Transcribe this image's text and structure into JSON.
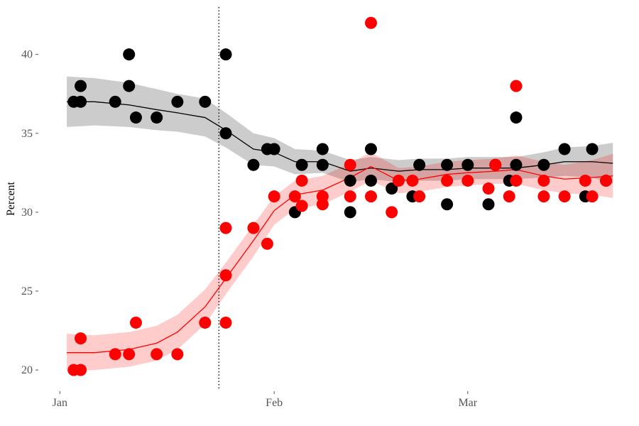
{
  "chart_data": {
    "type": "scatter",
    "y_label": "Percent",
    "xlim": [
      -2.5,
      81
    ],
    "ylim": [
      18.7,
      43
    ],
    "xticks": [
      {
        "value": 0,
        "label": "Jan"
      },
      {
        "value": 31,
        "label": "Feb"
      },
      {
        "value": 59,
        "label": "Mar"
      }
    ],
    "yticks": [
      20,
      25,
      30,
      35,
      40
    ],
    "grid": false,
    "vline_x": 23,
    "smooth_x": [
      1,
      5,
      10,
      14,
      17,
      21,
      24,
      28,
      31,
      34,
      38,
      42,
      45,
      49,
      52,
      56,
      59,
      63,
      66,
      70,
      73,
      77,
      80
    ],
    "series": [
      {
        "color": "#000000",
        "x": [
          2,
          3,
          3,
          8,
          10,
          10,
          11,
          14,
          17,
          21,
          24,
          24,
          28,
          30,
          31,
          34,
          35,
          38,
          38,
          42,
          42,
          45,
          45,
          48,
          51,
          52,
          56,
          56,
          59,
          62,
          63,
          65,
          66,
          66,
          70,
          73,
          76,
          77,
          79
        ],
        "values": [
          37,
          38,
          37,
          37,
          40,
          38,
          36,
          36,
          37,
          37,
          40,
          35,
          33,
          34,
          34,
          30,
          33,
          34,
          33,
          32,
          30,
          34,
          32,
          31.5,
          31,
          33,
          30.5,
          33,
          33,
          30.5,
          33,
          32,
          36,
          33,
          33,
          34,
          31,
          34,
          32
        ],
        "smooth_values": [
          37.0,
          37.0,
          36.8,
          36.5,
          36.3,
          36.0,
          35.2,
          34.0,
          33.8,
          33.2,
          33.2,
          32.6,
          32.8,
          32.6,
          32.7,
          32.7,
          32.8,
          32.8,
          32.8,
          33.0,
          33.2,
          33.2,
          33.1
        ],
        "smooth_lower": [
          35.4,
          35.5,
          35.4,
          35.2,
          35.1,
          34.8,
          34.1,
          33.0,
          32.9,
          32.4,
          32.5,
          31.9,
          32.1,
          31.9,
          32.0,
          32.0,
          32.1,
          32.1,
          32.1,
          32.2,
          32.3,
          32.2,
          31.8
        ],
        "smooth_upper": [
          38.6,
          38.5,
          38.2,
          37.8,
          37.5,
          37.2,
          36.3,
          35.0,
          34.7,
          34.0,
          33.9,
          33.3,
          33.5,
          33.3,
          33.4,
          33.4,
          33.5,
          33.5,
          33.5,
          33.8,
          34.1,
          34.2,
          34.4
        ]
      },
      {
        "color": "#ff0000",
        "x": [
          2,
          3,
          3,
          8,
          10,
          11,
          14,
          17,
          21,
          24,
          24,
          24,
          28,
          30,
          31,
          34,
          35,
          35,
          38,
          38,
          42,
          42,
          45,
          45,
          48,
          49,
          51,
          52,
          56,
          59,
          62,
          63,
          65,
          66,
          66,
          70,
          70,
          73,
          76,
          77,
          79
        ],
        "values": [
          20,
          20,
          22,
          21,
          21,
          23,
          21,
          21,
          23,
          29,
          26,
          23,
          29,
          28,
          31,
          31,
          32,
          30.4,
          31,
          30.5,
          33,
          31,
          42,
          31,
          30,
          32,
          32,
          31,
          32,
          32,
          31.5,
          33,
          31,
          38,
          32,
          32,
          31,
          31,
          32,
          31,
          32
        ],
        "smooth_values": [
          21.1,
          21.1,
          21.3,
          21.7,
          22.4,
          24.0,
          25.8,
          28.2,
          30.1,
          31.1,
          31.4,
          32.2,
          32.9,
          32.0,
          32.1,
          32.4,
          32.5,
          32.6,
          32.7,
          32.3,
          32.1,
          32.2,
          32.3
        ],
        "smooth_lower": [
          19.9,
          20.0,
          20.2,
          20.6,
          21.3,
          22.9,
          24.8,
          27.2,
          29.2,
          30.2,
          30.5,
          31.3,
          32.0,
          31.2,
          31.3,
          31.6,
          31.7,
          31.8,
          31.8,
          31.4,
          31.2,
          31.1,
          30.9
        ],
        "smooth_upper": [
          22.3,
          22.2,
          22.4,
          22.8,
          23.5,
          25.1,
          26.8,
          29.2,
          31.0,
          32.0,
          32.3,
          33.1,
          33.8,
          32.8,
          32.9,
          33.2,
          33.3,
          33.4,
          33.6,
          33.2,
          33.0,
          33.3,
          33.7
        ]
      }
    ]
  }
}
